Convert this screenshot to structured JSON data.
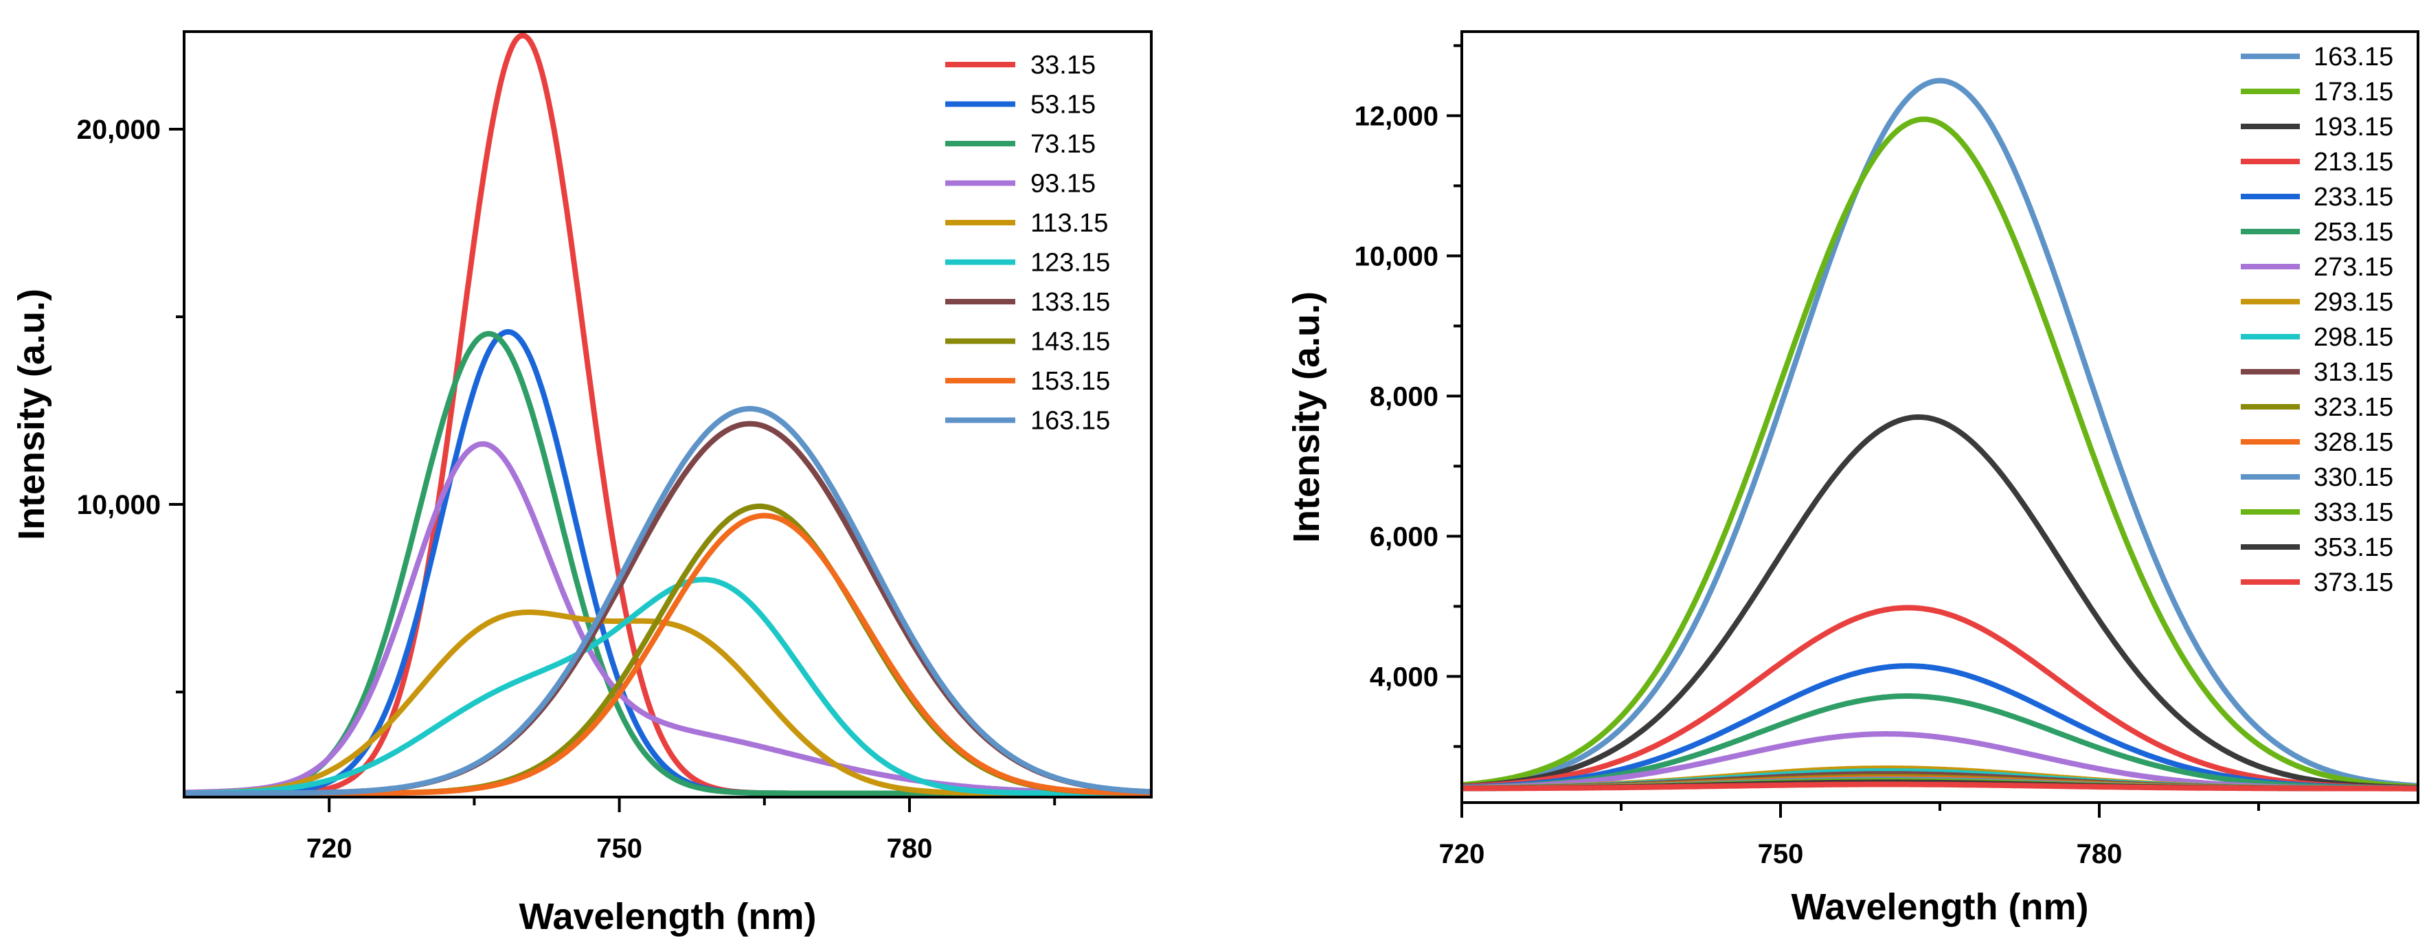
{
  "chart_data": [
    {
      "type": "line",
      "title": "",
      "xlabel": "Wavelength (nm)",
      "ylabel": "Intensity (a.u.)",
      "xlim": [
        705,
        805
      ],
      "ylim": [
        2200,
        22600
      ],
      "x_ticks": [
        720,
        750,
        780
      ],
      "x_tick_labels": [
        "720",
        "750",
        "780"
      ],
      "y_ticks": [
        10000,
        20000
      ],
      "y_tick_labels": [
        "10,000",
        "20,000"
      ],
      "x_minor_ticks": [
        735,
        765,
        795
      ],
      "y_minor_ticks": [
        5000,
        15000
      ],
      "legend_position": "top-right",
      "series": [
        {
          "name": "33.15",
          "color": "#e8403f",
          "components": [
            {
              "center": 740,
              "sigma": 6.3,
              "amp": 20200
            }
          ],
          "baseline": 2300
        },
        {
          "name": "53.15",
          "color": "#1a66d9",
          "components": [
            {
              "center": 738.5,
              "sigma": 6.8,
              "amp": 12300
            }
          ],
          "baseline": 2300
        },
        {
          "name": "73.15",
          "color": "#2e9e66",
          "components": [
            {
              "center": 736.5,
              "sigma": 7.3,
              "amp": 12250
            }
          ],
          "baseline": 2300
        },
        {
          "name": "93.15",
          "color": "#a874d8",
          "components": [
            {
              "center": 735.5,
              "sigma": 7.0,
              "amp": 8300
            },
            {
              "center": 752,
              "sigma": 16,
              "amp": 1700
            }
          ],
          "baseline": 2300
        },
        {
          "name": "113.15",
          "color": "#c8960c",
          "components": [
            {
              "center": 738,
              "sigma": 9.0,
              "amp": 4400
            },
            {
              "center": 757,
              "sigma": 8.5,
              "amp": 3900
            }
          ],
          "baseline": 2300
        },
        {
          "name": "123.15",
          "color": "#1dc7c7",
          "components": [
            {
              "center": 740,
              "sigma": 10,
              "amp": 2600
            },
            {
              "center": 760,
              "sigma": 9.0,
              "amp": 5300
            }
          ],
          "baseline": 2300
        },
        {
          "name": "133.15",
          "color": "#7d4548",
          "components": [
            {
              "center": 763.5,
              "sigma": 12.5,
              "amp": 9850
            }
          ],
          "baseline": 2300
        },
        {
          "name": "143.15",
          "color": "#8a8a0a",
          "components": [
            {
              "center": 764.5,
              "sigma": 10.5,
              "amp": 7650
            }
          ],
          "baseline": 2300
        },
        {
          "name": "153.15",
          "color": "#f26a1b",
          "components": [
            {
              "center": 765,
              "sigma": 10.5,
              "amp": 7400
            }
          ],
          "baseline": 2300
        },
        {
          "name": "163.15",
          "color": "#5e93c8",
          "components": [
            {
              "center": 763.5,
              "sigma": 12.5,
              "amp": 10250
            }
          ],
          "baseline": 2300
        }
      ]
    },
    {
      "type": "line",
      "title": "",
      "xlabel": "Wavelength (nm)",
      "ylabel": "Intensity (a.u.)",
      "xlim": [
        720,
        810
      ],
      "ylim": [
        2200,
        13200
      ],
      "x_ticks": [
        720,
        750,
        780
      ],
      "x_tick_labels": [
        "720",
        "750",
        "780"
      ],
      "y_ticks": [
        4000,
        6000,
        8000,
        10000,
        12000
      ],
      "y_tick_labels": [
        "4,000",
        "6,000",
        "8,000",
        "10,000",
        "12,000"
      ],
      "x_minor_ticks": [
        735,
        765,
        795
      ],
      "y_minor_ticks": [
        3000,
        5000,
        7000,
        9000,
        11000,
        13000
      ],
      "legend_position": "top-right",
      "series": [
        {
          "name": "163.15",
          "color": "#5e93c8",
          "components": [
            {
              "center": 765,
              "sigma": 13.5,
              "amp": 10100
            }
          ],
          "baseline": 2400
        },
        {
          "name": "173.15",
          "color": "#6ab515",
          "components": [
            {
              "center": 763.5,
              "sigma": 13.5,
              "amp": 9550
            }
          ],
          "baseline": 2400
        },
        {
          "name": "193.15",
          "color": "#3a3a3a",
          "components": [
            {
              "center": 763,
              "sigma": 13.5,
              "amp": 5300
            }
          ],
          "baseline": 2400
        },
        {
          "name": "213.15",
          "color": "#e8403f",
          "components": [
            {
              "center": 762,
              "sigma": 14,
              "amp": 2580
            }
          ],
          "baseline": 2400
        },
        {
          "name": "233.15",
          "color": "#1a66d9",
          "components": [
            {
              "center": 762,
              "sigma": 14,
              "amp": 1750
            }
          ],
          "baseline": 2400
        },
        {
          "name": "253.15",
          "color": "#2e9e66",
          "components": [
            {
              "center": 762,
              "sigma": 14,
              "amp": 1320
            }
          ],
          "baseline": 2400
        },
        {
          "name": "273.15",
          "color": "#a874d8",
          "components": [
            {
              "center": 760,
              "sigma": 14,
              "amp": 780
            }
          ],
          "baseline": 2400
        },
        {
          "name": "293.15",
          "color": "#c8960c",
          "components": [
            {
              "center": 760,
              "sigma": 15,
              "amp": 290
            }
          ],
          "baseline": 2400
        },
        {
          "name": "298.15",
          "color": "#1dc7c7",
          "components": [
            {
              "center": 760,
              "sigma": 15,
              "amp": 250
            }
          ],
          "baseline": 2400
        },
        {
          "name": "313.15",
          "color": "#7d4548",
          "components": [
            {
              "center": 760,
              "sigma": 15,
              "amp": 210
            }
          ],
          "baseline": 2400
        },
        {
          "name": "323.15",
          "color": "#8a8a0a",
          "components": [
            {
              "center": 760,
              "sigma": 15,
              "amp": 170
            }
          ],
          "baseline": 2400
        },
        {
          "name": "328.15",
          "color": "#f26a1b",
          "components": [
            {
              "center": 760,
              "sigma": 15,
              "amp": 150
            }
          ],
          "baseline": 2400
        },
        {
          "name": "330.15",
          "color": "#5e93c8",
          "components": [
            {
              "center": 760,
              "sigma": 15,
              "amp": 130
            }
          ],
          "baseline": 2400
        },
        {
          "name": "333.15",
          "color": "#6ab515",
          "components": [
            {
              "center": 760,
              "sigma": 15,
              "amp": 110
            }
          ],
          "baseline": 2400
        },
        {
          "name": "353.15",
          "color": "#3a3a3a",
          "components": [
            {
              "center": 760,
              "sigma": 15,
              "amp": 90
            }
          ],
          "baseline": 2400
        },
        {
          "name": "373.15",
          "color": "#e8403f",
          "components": [
            {
              "center": 760,
              "sigma": 15,
              "amp": 60
            }
          ],
          "baseline": 2400
        }
      ]
    }
  ]
}
